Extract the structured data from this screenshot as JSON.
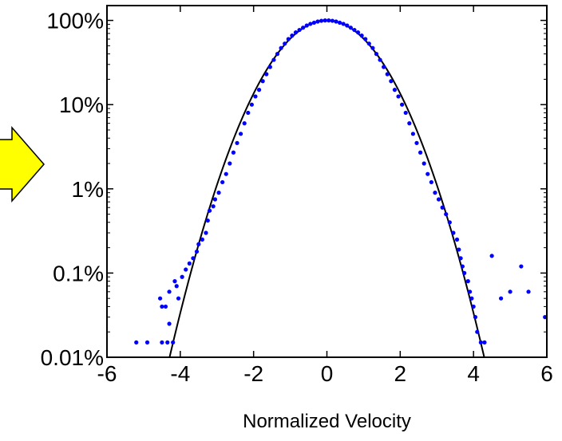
{
  "chart_data": {
    "type": "scatter",
    "title": "",
    "xlabel": "Normalized Velocity",
    "ylabel": "",
    "xlim": [
      -6,
      6
    ],
    "ylim": [
      0.0001,
      1.5
    ],
    "y_scale": "log",
    "grid": false,
    "x_ticks": [
      -6,
      -4,
      -2,
      0,
      2,
      4,
      6
    ],
    "x_tick_labels": [
      "-6",
      "-4",
      "-2",
      "0",
      "2",
      "4",
      "6"
    ],
    "y_ticks": [
      0.0001,
      0.001,
      0.01,
      0.1,
      1
    ],
    "y_tick_labels": [
      "0.01%",
      "0.1%",
      "1%",
      "10%",
      "100%"
    ],
    "series": [
      {
        "kind": "scatter",
        "color": "#0000ff",
        "points": [
          [
            -5.2,
            0.00015
          ],
          [
            -4.9,
            0.00015
          ],
          [
            -4.5,
            0.00015
          ],
          [
            -4.35,
            0.00015
          ],
          [
            -4.2,
            0.00015
          ],
          [
            -4.55,
            0.0005
          ],
          [
            -4.4,
            0.0004
          ],
          [
            -4.3,
            0.00025
          ],
          [
            -4.5,
            0.0004
          ],
          [
            -4.3,
            0.0006
          ],
          [
            -4.15,
            0.0008
          ],
          [
            -4.1,
            0.0007
          ],
          [
            -4.05,
            0.0005
          ],
          [
            -3.95,
            0.0009
          ],
          [
            -3.85,
            0.0011
          ],
          [
            -3.75,
            0.0013
          ],
          [
            -3.65,
            0.0015
          ],
          [
            -3.55,
            0.0018
          ],
          [
            -3.5,
            0.0022
          ],
          [
            -3.4,
            0.0025
          ],
          [
            -3.3,
            0.003
          ],
          [
            -3.25,
            0.0042
          ],
          [
            -3.2,
            0.0055
          ],
          [
            -3.1,
            0.0062
          ],
          [
            -3.05,
            0.0075
          ],
          [
            -2.95,
            0.009
          ],
          [
            -2.85,
            0.012
          ],
          [
            -2.75,
            0.015
          ],
          [
            -2.65,
            0.02
          ],
          [
            -2.55,
            0.027
          ],
          [
            -2.45,
            0.035
          ],
          [
            -2.35,
            0.045
          ],
          [
            -2.25,
            0.06
          ],
          [
            -2.15,
            0.08
          ],
          [
            -2.05,
            0.1
          ],
          [
            -1.95,
            0.125
          ],
          [
            -1.85,
            0.15
          ],
          [
            -1.75,
            0.19
          ],
          [
            -1.65,
            0.23
          ],
          [
            -1.55,
            0.28
          ],
          [
            -1.45,
            0.34
          ],
          [
            -1.35,
            0.4
          ],
          [
            -1.25,
            0.47
          ],
          [
            -1.15,
            0.53
          ],
          [
            -1.05,
            0.6
          ],
          [
            -0.95,
            0.66
          ],
          [
            -0.85,
            0.72
          ],
          [
            -0.75,
            0.77
          ],
          [
            -0.65,
            0.82
          ],
          [
            -0.55,
            0.87
          ],
          [
            -0.45,
            0.91
          ],
          [
            -0.35,
            0.94
          ],
          [
            -0.25,
            0.97
          ],
          [
            -0.15,
            0.99
          ],
          [
            -0.05,
            1.0
          ],
          [
            0.05,
            1.0
          ],
          [
            0.15,
            0.99
          ],
          [
            0.25,
            0.97
          ],
          [
            0.35,
            0.94
          ],
          [
            0.45,
            0.91
          ],
          [
            0.55,
            0.87
          ],
          [
            0.65,
            0.82
          ],
          [
            0.75,
            0.77
          ],
          [
            0.85,
            0.72
          ],
          [
            0.95,
            0.66
          ],
          [
            1.05,
            0.6
          ],
          [
            1.15,
            0.53
          ],
          [
            1.25,
            0.47
          ],
          [
            1.35,
            0.4
          ],
          [
            1.45,
            0.34
          ],
          [
            1.55,
            0.28
          ],
          [
            1.65,
            0.23
          ],
          [
            1.75,
            0.19
          ],
          [
            1.85,
            0.15
          ],
          [
            1.95,
            0.125
          ],
          [
            2.05,
            0.1
          ],
          [
            2.15,
            0.08
          ],
          [
            2.25,
            0.06
          ],
          [
            2.35,
            0.045
          ],
          [
            2.45,
            0.035
          ],
          [
            2.55,
            0.027
          ],
          [
            2.65,
            0.02
          ],
          [
            2.75,
            0.015
          ],
          [
            2.85,
            0.012
          ],
          [
            2.95,
            0.009
          ],
          [
            3.05,
            0.0075
          ],
          [
            3.15,
            0.006
          ],
          [
            3.25,
            0.005
          ],
          [
            3.35,
            0.004
          ],
          [
            3.45,
            0.003
          ],
          [
            3.55,
            0.0025
          ],
          [
            3.6,
            0.0019
          ],
          [
            3.65,
            0.0015
          ],
          [
            3.7,
            0.0012
          ],
          [
            3.75,
            0.001
          ],
          [
            3.85,
            0.0008
          ],
          [
            3.9,
            0.0006
          ],
          [
            3.95,
            0.0005
          ],
          [
            4.0,
            0.0004
          ],
          [
            4.05,
            0.0003
          ],
          [
            4.1,
            0.0002
          ],
          [
            4.2,
            0.00015
          ],
          [
            4.3,
            0.00015
          ],
          [
            4.5,
            0.0016
          ],
          [
            4.75,
            0.0005
          ],
          [
            5.0,
            0.0006
          ],
          [
            5.3,
            0.0012
          ],
          [
            5.5,
            0.0006
          ],
          [
            5.95,
            0.0003
          ]
        ]
      },
      {
        "kind": "line",
        "color": "#000000",
        "function": "gaussian",
        "peak": 1.0,
        "sigma": 1.0,
        "x_range": [
          -4.3,
          4.3
        ]
      }
    ]
  },
  "annotation": {
    "arrow_color": "#ffff00",
    "arrow_stroke": "#000000"
  }
}
